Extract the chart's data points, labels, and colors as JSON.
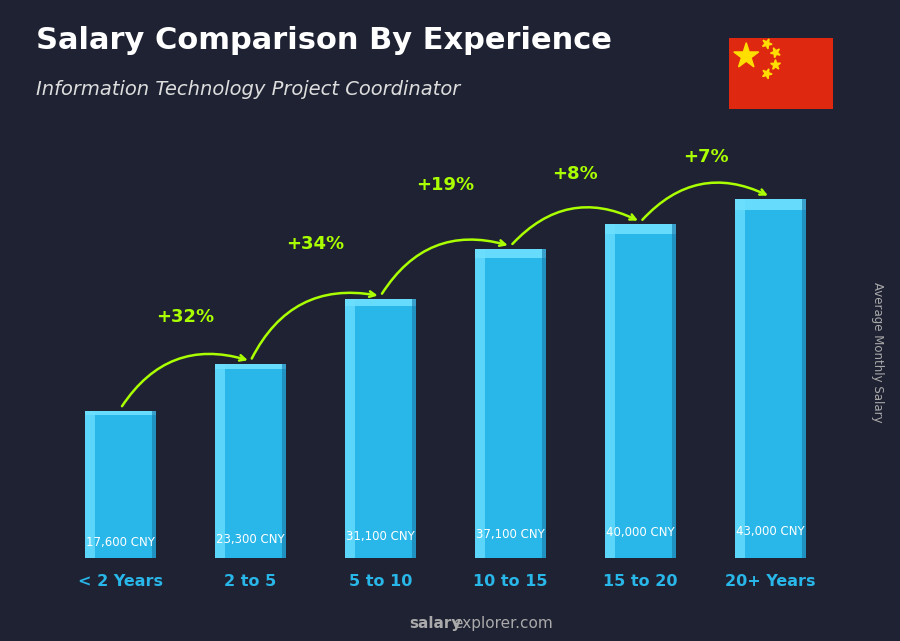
{
  "title": "Salary Comparison By Experience",
  "subtitle": "Information Technology Project Coordinator",
  "categories": [
    "< 2 Years",
    "2 to 5",
    "5 to 10",
    "10 to 15",
    "15 to 20",
    "20+ Years"
  ],
  "values": [
    17600,
    23300,
    31100,
    37100,
    40000,
    43000
  ],
  "salary_labels": [
    "17,600 CNY",
    "23,300 CNY",
    "31,100 CNY",
    "37,100 CNY",
    "40,000 CNY",
    "43,000 CNY"
  ],
  "pct_changes": [
    null,
    "+32%",
    "+34%",
    "+19%",
    "+8%",
    "+7%"
  ],
  "bar_color_main": "#29b6e8",
  "bar_color_light": "#6de0ff",
  "bar_color_dark": "#1a7aaa",
  "background_color": "#1e2233",
  "title_color": "#ffffff",
  "subtitle_color": "#dddddd",
  "salary_label_color": "#ffffff",
  "pct_color": "#aaff00",
  "xlabel_color": "#29b6e8",
  "ylabel_color": "#aaaaaa",
  "footer_normal_color": "#aaaaaa",
  "footer_bold_color": "#aaaaaa",
  "ylabel_text": "Average Monthly Salary",
  "footer_salary": "salary",
  "footer_rest": "explorer.com",
  "ylim": [
    0,
    50000
  ]
}
